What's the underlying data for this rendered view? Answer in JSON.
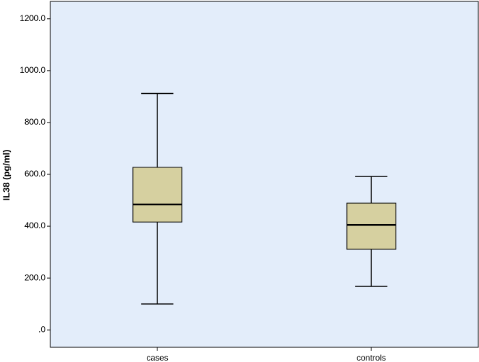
{
  "chart_data": {
    "type": "box",
    "y_label": "IL38 (pg/ml)",
    "categories": [
      "cases",
      "controls"
    ],
    "boxes": [
      {
        "min": 100,
        "q1": 416,
        "median": 484,
        "q3": 627,
        "max": 912
      },
      {
        "min": 168,
        "q1": 311,
        "median": 405,
        "q3": 489,
        "max": 592
      }
    ],
    "color": "#d6d0a0",
    "background": "#e3edfa",
    "ylim": [
      -67,
      1267
    ],
    "yticks": [
      {
        "value": 0,
        "label": ".0"
      },
      {
        "value": 200,
        "label": "200.0"
      },
      {
        "value": 400,
        "label": "400.0"
      },
      {
        "value": 600,
        "label": "600.0"
      },
      {
        "value": 800,
        "label": "800.0"
      },
      {
        "value": 1000,
        "label": "1000.0"
      },
      {
        "value": 1200,
        "label": "1200.0"
      }
    ]
  }
}
